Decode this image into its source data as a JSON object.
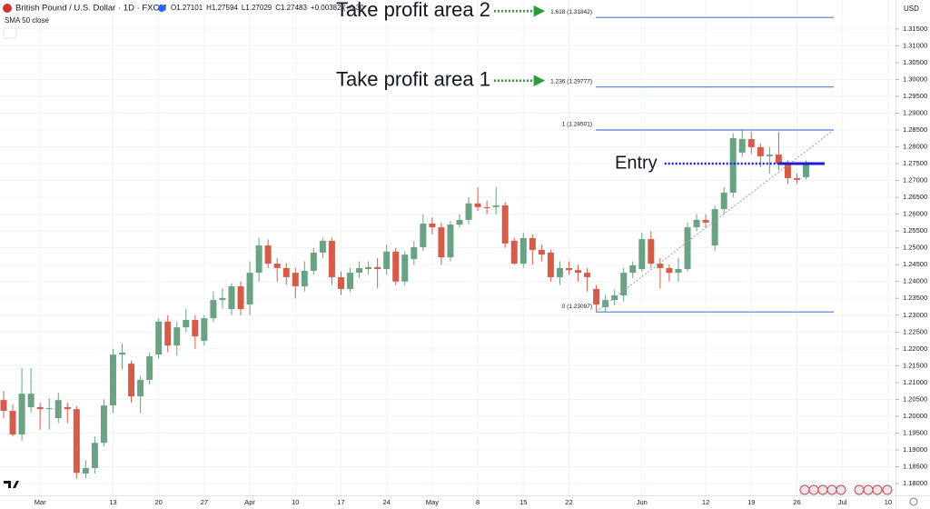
{
  "header": {
    "symbol": "British Pound / U.S. Dollar · 1D · FXCM",
    "ohlc": [
      "O1.27101",
      "H1.27594",
      "L1.27029",
      "C1.27483",
      "+0.00382 (+0.30"
    ],
    "indicator": "SMA 50 close",
    "currency": "USD"
  },
  "chart_data": {
    "type": "candlestick",
    "categories": [
      null,
      null,
      null,
      null,
      "Mar",
      null,
      null,
      null,
      null,
      null,
      null,
      null,
      "13",
      null,
      null,
      null,
      null,
      "20",
      null,
      null,
      null,
      null,
      "27",
      null,
      null,
      null,
      null,
      "Apr",
      null,
      null,
      null,
      null,
      "10",
      null,
      null,
      null,
      null,
      "17",
      null,
      null,
      null,
      null,
      "24",
      null,
      null,
      null,
      null,
      "May",
      null,
      null,
      null,
      null,
      "8",
      null,
      null,
      null,
      null,
      "15",
      null,
      null,
      null,
      null,
      "22",
      null,
      null,
      null,
      null,
      null,
      null,
      null,
      "Jun",
      null,
      null,
      null,
      null,
      null,
      null,
      "12",
      null,
      null,
      null,
      null,
      "19",
      null,
      null,
      null,
      null,
      "26",
      null,
      null,
      null,
      null,
      "Jul",
      null,
      null,
      null,
      null,
      "10"
    ],
    "open": [
      1.2048,
      1.2016,
      1.1946,
      1.2027,
      1.2027,
      1.2021,
      1.1994,
      1.2027,
      1.2021,
      1.183,
      1.1846,
      1.1921,
      1.2032,
      1.2183,
      1.2156,
      1.2059,
      1.2108,
      1.2183,
      1.2281,
      1.221,
      1.2264,
      1.2286,
      1.2224,
      1.2291,
      1.2345,
      1.2318,
      1.2386,
      1.2332,
      1.2426,
      1.2507,
      1.2453,
      1.244,
      1.2426,
      1.2386,
      1.2432,
      1.2486,
      1.2521,
      1.2413,
      1.2378,
      1.2426,
      1.2437,
      1.2443,
      1.2437,
      1.2489,
      1.24,
      1.2467,
      1.2502,
      1.2572,
      1.2561,
      1.2472,
      1.2569,
      1.2583,
      1.2632,
      1.2621,
      1.2621,
      1.2626,
      1.2521,
      1.2453,
      1.2529,
      1.2494,
      1.2486,
      1.2413,
      1.244,
      1.2434,
      1.2426,
      1.2378,
      1.2324,
      1.2345,
      1.2359,
      1.2426,
      1.2437,
      1.2526,
      1.2453,
      1.244,
      1.2426,
      1.2437,
      1.2561,
      1.2583,
      1.2507,
      1.2615,
      1.2664,
      1.2783,
      1.2823,
      1.2799,
      1.2772,
      1.2777,
      1.275,
      1.2707,
      1.27101,
      null,
      null,
      null,
      null,
      null,
      null,
      null,
      null,
      null
    ],
    "high": [
      1.2075,
      1.2035,
      1.2143,
      1.2143,
      1.204,
      1.2054,
      1.207,
      1.204,
      1.203,
      1.187,
      1.194,
      1.205,
      1.22,
      1.2215,
      1.2165,
      1.212,
      1.219,
      1.229,
      1.23,
      1.228,
      1.232,
      1.23,
      1.23,
      1.237,
      1.238,
      1.2395,
      1.24,
      1.246,
      1.253,
      1.2525,
      1.247,
      1.2455,
      1.244,
      1.246,
      1.25,
      1.253,
      1.253,
      1.243,
      1.244,
      1.246,
      1.246,
      1.247,
      1.251,
      1.25,
      1.249,
      1.252,
      1.26,
      1.259,
      1.2575,
      1.258,
      1.26,
      1.265,
      1.268,
      1.264,
      1.268,
      1.2635,
      1.253,
      1.2545,
      1.254,
      1.251,
      1.2495,
      1.246,
      1.246,
      1.245,
      1.244,
      1.239,
      1.236,
      1.2375,
      1.244,
      1.246,
      1.2545,
      1.255,
      1.247,
      1.245,
      1.247,
      1.2575,
      1.26,
      1.26,
      1.2625,
      1.268,
      1.284,
      1.285,
      1.2845,
      1.281,
      1.28,
      1.2845,
      1.276,
      1.272,
      1.27594,
      null,
      null,
      null,
      null,
      null,
      null,
      null,
      null,
      null
    ],
    "low": [
      1.1994,
      1.194,
      1.1927,
      1.201,
      1.196,
      1.196,
      1.198,
      1.198,
      1.1815,
      1.1815,
      1.183,
      1.191,
      1.201,
      1.214,
      1.204,
      1.201,
      1.2095,
      1.217,
      1.219,
      1.218,
      1.225,
      1.22,
      1.221,
      1.228,
      1.232,
      1.23,
      1.23,
      1.23,
      1.24,
      1.244,
      1.24,
      1.239,
      1.235,
      1.237,
      1.242,
      1.247,
      1.239,
      1.236,
      1.237,
      1.241,
      1.242,
      1.238,
      1.242,
      1.239,
      1.239,
      1.245,
      1.249,
      1.254,
      1.245,
      1.246,
      1.256,
      1.257,
      1.261,
      1.26,
      1.26,
      1.25,
      1.245,
      1.244,
      1.245,
      1.246,
      1.24,
      1.239,
      1.242,
      1.24,
      1.237,
      1.231,
      1.231,
      1.233,
      1.234,
      1.241,
      1.243,
      1.244,
      1.238,
      1.24,
      1.24,
      1.243,
      1.255,
      1.256,
      1.249,
      1.26,
      1.265,
      1.277,
      1.278,
      1.274,
      1.272,
      1.273,
      1.269,
      1.269,
      1.27029,
      null,
      null,
      null,
      null,
      null,
      null,
      null,
      null,
      null
    ],
    "close": [
      1.2016,
      1.1946,
      1.2067,
      1.2067,
      1.2021,
      1.2024,
      1.2048,
      1.2021,
      1.1832,
      1.1846,
      1.1921,
      1.2032,
      1.2183,
      1.2189,
      1.2059,
      1.2108,
      1.2178,
      1.2281,
      1.221,
      1.2264,
      1.2286,
      1.2237,
      1.2291,
      1.2345,
      1.2351,
      1.2386,
      1.2318,
      1.2426,
      1.2507,
      1.2453,
      1.244,
      1.2413,
      1.2386,
      1.2432,
      1.2486,
      1.2521,
      1.2413,
      1.2378,
      1.2426,
      1.244,
      1.2443,
      1.2437,
      1.2489,
      1.24,
      1.248,
      1.2502,
      1.2572,
      1.2561,
      1.2472,
      1.2569,
      1.2583,
      1.2632,
      1.2621,
      1.2618,
      1.2626,
      1.2513,
      1.2453,
      1.2529,
      1.2494,
      1.248,
      1.2413,
      1.244,
      1.2434,
      1.2426,
      1.2413,
      1.2332,
      1.2345,
      1.2359,
      1.2426,
      1.2448,
      1.2526,
      1.2453,
      1.244,
      1.2426,
      1.2437,
      1.2561,
      1.2583,
      1.2575,
      1.2615,
      1.2664,
      1.2826,
      1.2823,
      1.2799,
      1.2772,
      1.2777,
      1.275,
      1.2707,
      1.2702,
      1.27483,
      null,
      null,
      null,
      null,
      null,
      null,
      null,
      null,
      null
    ],
    "up_color": "#6aa283",
    "down_color": "#d65c4a",
    "ylim": [
      1.1765,
      1.3236
    ],
    "yticks": [
      {
        "value": 1.315,
        "label": "1.31500"
      },
      {
        "value": 1.31,
        "label": "1.31000"
      },
      {
        "value": 1.305,
        "label": "1.30500"
      },
      {
        "value": 1.3,
        "label": "1.30000"
      },
      {
        "value": 1.295,
        "label": "1.29500"
      },
      {
        "value": 1.29,
        "label": "1.29000"
      },
      {
        "value": 1.285,
        "label": "1.28500"
      },
      {
        "value": 1.28,
        "label": "1.28000"
      },
      {
        "value": 1.275,
        "label": "1.27500"
      },
      {
        "value": 1.27,
        "label": "1.27000"
      },
      {
        "value": 1.265,
        "label": "1.26500"
      },
      {
        "value": 1.26,
        "label": "1.26000"
      },
      {
        "value": 1.255,
        "label": "1.25500"
      },
      {
        "value": 1.25,
        "label": "1.25000"
      },
      {
        "value": 1.245,
        "label": "1.24500"
      },
      {
        "value": 1.24,
        "label": "1.24000"
      },
      {
        "value": 1.235,
        "label": "1.23500"
      },
      {
        "value": 1.23,
        "label": "1.23000"
      },
      {
        "value": 1.225,
        "label": "1.22500"
      },
      {
        "value": 1.22,
        "label": "1.22000"
      },
      {
        "value": 1.215,
        "label": "1.21500"
      },
      {
        "value": 1.21,
        "label": "1.21000"
      },
      {
        "value": 1.205,
        "label": "1.20500"
      },
      {
        "value": 1.2,
        "label": "1.20000"
      },
      {
        "value": 1.195,
        "label": "1.19500"
      },
      {
        "value": 1.19,
        "label": "1.19000"
      },
      {
        "value": 1.185,
        "label": "1.18500"
      },
      {
        "value": 1.18,
        "label": "1.18000"
      }
    ],
    "fib_color": "#4a7fd4",
    "fib_levels": [
      {
        "value": 1.31842,
        "label": "1.618 (1.31842)"
      },
      {
        "value": 1.29777,
        "label": "1.236 (1.29777)"
      },
      {
        "value": 1.28501,
        "label": "1 (1.28501)"
      },
      {
        "value": 1.23097,
        "label": "0 (1.23097)"
      }
    ],
    "annotations": [
      {
        "text": "Take profit area 2",
        "level": 0
      },
      {
        "text": "Take profit area 1",
        "level": 1
      }
    ],
    "annotation_color": "#2e9a3b",
    "entry": {
      "text": "Entry",
      "value": 1.275,
      "color": "#1c1cd0"
    }
  }
}
